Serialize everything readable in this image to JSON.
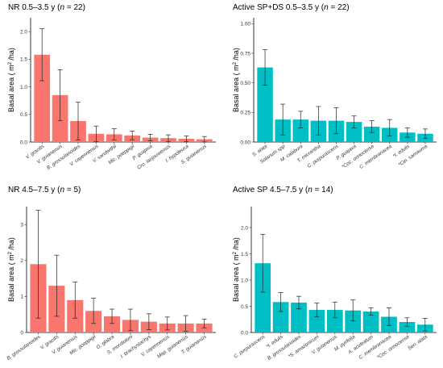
{
  "chart_data": [
    {
      "type": "bar",
      "title": "NR 0.5–3.5 y (n = 22)",
      "title_parts": [
        "NR 0.5–3.5 y (",
        "n",
        " = 22)"
      ],
      "ylabel": "Basal area ( m² /ha)",
      "ylabel_parts": [
        "Basal area ( m",
        "2",
        " /ha)"
      ],
      "color": "#F8766D",
      "ylim": [
        0,
        2.25
      ],
      "yticks": [
        0.0,
        0.5,
        1.0,
        1.5,
        2.0
      ],
      "ytick_labels": [
        "0.0",
        "0.5",
        "1.0",
        "1.5",
        "2.0"
      ],
      "categories": [
        "V. gracilis",
        "V. guianensis",
        "B. grossularioides",
        "V. cayennensis",
        "V. sandwithii",
        "Mic. poeppigii",
        "P. guajava",
        "Cro. lanjouwensis",
        "I. hypoleuca",
        "S. guianensis"
      ],
      "values": [
        1.58,
        0.85,
        0.38,
        0.15,
        0.14,
        0.12,
        0.08,
        0.07,
        0.06,
        0.05
      ],
      "errors": [
        0.47,
        0.46,
        0.34,
        0.14,
        0.1,
        0.08,
        0.06,
        0.06,
        0.05,
        0.05
      ]
    },
    {
      "type": "bar",
      "title": "Active SP+DS 0.5–3.5 y (n = 22)",
      "title_parts": [
        "Active SP+DS 0.5–3.5 y (",
        "n",
        " = 22)"
      ],
      "ylabel": "Basal area ( m² /ha)",
      "ylabel_parts": [
        "Basal area ( m",
        "2",
        " /ha)"
      ],
      "color": "#00BFC4",
      "ylim": [
        0,
        1.05
      ],
      "yticks": [
        0.0,
        0.25,
        0.5,
        0.75,
        1.0
      ],
      "ytick_labels": [
        "0.00",
        "0.25",
        "0.50",
        "0.75",
        "1.00"
      ],
      "categories": [
        "S. alata",
        "Solanum spp",
        "M. calabura",
        "T. micrantha",
        "C. purpurascens",
        "P. guajava",
        "*Coc. orinocense",
        "C. membranacea",
        "*I. edulis",
        "*Cei. samauma"
      ],
      "values": [
        0.63,
        0.19,
        0.19,
        0.18,
        0.18,
        0.17,
        0.13,
        0.12,
        0.08,
        0.07
      ],
      "errors": [
        0.15,
        0.13,
        0.07,
        0.12,
        0.11,
        0.05,
        0.05,
        0.07,
        0.04,
        0.04
      ]
    },
    {
      "type": "bar",
      "title": "NR 4.5–7.5 y (n = 5)",
      "title_parts": [
        "NR 4.5–7.5 y (",
        "n",
        " = 5)"
      ],
      "ylabel": "Basal area ( m² /ha)",
      "ylabel_parts": [
        "Basal area ( m",
        "2",
        " /ha)"
      ],
      "color": "#F8766D",
      "ylim": [
        0,
        3.5
      ],
      "yticks": [
        0,
        1,
        2,
        3
      ],
      "ytick_labels": [
        "0",
        "1",
        "2",
        "3"
      ],
      "categories": [
        "B. grossularioides",
        "V. gracilis",
        "V. guianensis",
        "Mic. poeppigii",
        "G. glabra",
        "S. morototoni",
        "I. brachystachys",
        "V. cayennensis",
        "Map. guianensis",
        "T. guianensis"
      ],
      "values": [
        1.9,
        1.3,
        0.9,
        0.6,
        0.45,
        0.35,
        0.3,
        0.25,
        0.25,
        0.25
      ],
      "errors": [
        1.5,
        0.85,
        0.5,
        0.35,
        0.2,
        0.3,
        0.22,
        0.18,
        0.22,
        0.12
      ]
    },
    {
      "type": "bar",
      "title": "Active SP 4.5–7.5 y (n = 14)",
      "title_parts": [
        "Active SP 4.5–7.5 y (",
        "n",
        " = 14)"
      ],
      "ylabel": "Basal area ( m² /ha)",
      "ylabel_parts": [
        "Basal area ( m",
        "2",
        " /ha)"
      ],
      "color": "#00BFC4",
      "ylim": [
        0,
        2.4
      ],
      "yticks": [
        0.0,
        0.5,
        1.0,
        1.5,
        2.0
      ],
      "ytick_labels": [
        "0.0",
        "0.5",
        "1.0",
        "1.5",
        "2.0"
      ],
      "categories": [
        "C. purpurascens",
        "*I. edulis",
        "B. grossularioides",
        "*S. amazonicum",
        "V. guianensis",
        "M. pyrifolia",
        "A. aculeatum",
        "C. membranacea",
        "*Coc. orinocense",
        "Sen. alata"
      ],
      "values": [
        1.32,
        0.58,
        0.57,
        0.43,
        0.43,
        0.42,
        0.4,
        0.3,
        0.2,
        0.15
      ],
      "errors": [
        0.55,
        0.18,
        0.12,
        0.13,
        0.15,
        0.2,
        0.07,
        0.17,
        0.08,
        0.12
      ]
    }
  ]
}
